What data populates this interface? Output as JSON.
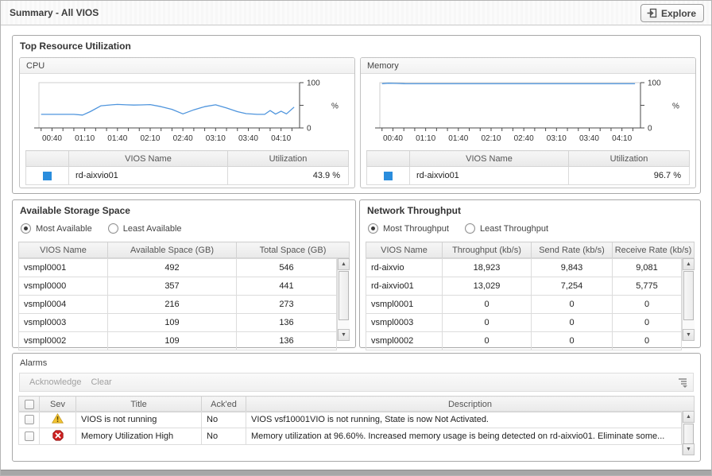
{
  "window": {
    "title": "Summary - All VIOS",
    "explore_label": "Explore"
  },
  "colors": {
    "accent_blue": "#2a8ddd",
    "chart_line": "#4f95dd",
    "warning_yellow": "#f3c431",
    "error_red": "#cc2020"
  },
  "icons": {
    "explore": "explore-arrow-into-screen-icon",
    "alarm_warning": "warning-triangle-icon",
    "alarm_error": "error-cross-icon",
    "column_config": "column-settings-icon",
    "scroll_up": "▲",
    "scroll_down": "▼"
  },
  "top_resource": {
    "title": "Top Resource Utilization",
    "cpu": {
      "title": "CPU",
      "legend_headers": [
        "VIOS Name",
        "Utilization"
      ],
      "rows": [
        {
          "name": "rd-aixvio01",
          "value": "43.9 %"
        }
      ]
    },
    "memory": {
      "title": "Memory",
      "legend_headers": [
        "VIOS Name",
        "Utilization"
      ],
      "rows": [
        {
          "name": "rd-aixvio01",
          "value": "96.7 %"
        }
      ]
    }
  },
  "storage": {
    "title": "Available Storage Space",
    "radio_options": [
      "Most Available",
      "Least Available"
    ],
    "selected_radio": "Most Available",
    "columns": [
      "VIOS Name",
      "Available Space (GB)",
      "Total Space (GB)"
    ],
    "rows": [
      [
        "vsmpl0001",
        "492",
        "546"
      ],
      [
        "vsmpl0000",
        "357",
        "441"
      ],
      [
        "vsmpl0004",
        "216",
        "273"
      ],
      [
        "vsmpl0003",
        "109",
        "136"
      ],
      [
        "vsmpl0002",
        "109",
        "136"
      ]
    ]
  },
  "network": {
    "title": "Network Throughput",
    "radio_options": [
      "Most Throughput",
      "Least Throughput"
    ],
    "selected_radio": "Most Throughput",
    "columns": [
      "VIOS Name",
      "Throughput (kb/s)",
      "Send Rate (kb/s)",
      "Receive Rate (kb/s)"
    ],
    "rows": [
      [
        "rd-aixvio",
        "18,923",
        "9,843",
        "9,081"
      ],
      [
        "rd-aixvio01",
        "13,029",
        "7,254",
        "5,775"
      ],
      [
        "vsmpl0001",
        "0",
        "0",
        "0"
      ],
      [
        "vsmpl0003",
        "0",
        "0",
        "0"
      ],
      [
        "vsmpl0002",
        "0",
        "0",
        "0"
      ]
    ]
  },
  "alarms": {
    "title": "Alarms",
    "toolbar": [
      "Acknowledge",
      "Clear"
    ],
    "columns": [
      "",
      "Sev",
      "Title",
      "Ack'ed",
      "Description"
    ],
    "rows": [
      {
        "severity": "warning",
        "title": "VIOS is not running",
        "acked": "No",
        "description": "VIOS vsf10001VIO is not running, State is now Not Activated."
      },
      {
        "severity": "error",
        "title": "Memory Utilization High",
        "acked": "No",
        "description": "Memory utilization at 96.60%. Increased memory usage is being detected on rd-aixvio01. Eliminate some..."
      }
    ]
  },
  "chart_data": [
    {
      "type": "line",
      "title": "CPU",
      "ylabel": "%",
      "ylim": [
        0,
        100
      ],
      "yticks": [
        0,
        50,
        100
      ],
      "ytick_labels": [
        "0",
        "",
        "100"
      ],
      "x_minutes_range": [
        28,
        267
      ],
      "xtick_minor_minutes": [
        30,
        40,
        50,
        60,
        70,
        80,
        90,
        100,
        110,
        120,
        130,
        140,
        150,
        160,
        170,
        180,
        190,
        200,
        210,
        220,
        230,
        240,
        250,
        260
      ],
      "xtick_labeled_minutes": [
        40,
        70,
        100,
        130,
        160,
        190,
        220,
        250
      ],
      "x_tick_labels": [
        "00:40",
        "01:10",
        "01:40",
        "02:10",
        "02:40",
        "03:10",
        "03:40",
        "04:10"
      ],
      "grid": false,
      "legend_position": "bottom-table",
      "series": [
        {
          "name": "rd-aixvio01",
          "points": [
            [
              30,
              30
            ],
            [
              45,
              30
            ],
            [
              60,
              30
            ],
            [
              68,
              28.5
            ],
            [
              75,
              36
            ],
            [
              85,
              49
            ],
            [
              95,
              51
            ],
            [
              100,
              52
            ],
            [
              108,
              51
            ],
            [
              115,
              50.5
            ],
            [
              122,
              50.8
            ],
            [
              130,
              51.5
            ],
            [
              140,
              47
            ],
            [
              150,
              41
            ],
            [
              160,
              31
            ],
            [
              170,
              40
            ],
            [
              180,
              47
            ],
            [
              190,
              51
            ],
            [
              200,
              44
            ],
            [
              210,
              36
            ],
            [
              218,
              31.5
            ],
            [
              228,
              30
            ],
            [
              235,
              30
            ],
            [
              240,
              38.5
            ],
            [
              245,
              30.5
            ],
            [
              250,
              37
            ],
            [
              255,
              31
            ],
            [
              262,
              46
            ]
          ]
        }
      ]
    },
    {
      "type": "line",
      "title": "Memory",
      "ylabel": "%",
      "ylim": [
        0,
        100
      ],
      "yticks": [
        0,
        50,
        100
      ],
      "ytick_labels": [
        "0",
        "",
        "100"
      ],
      "x_minutes_range": [
        28,
        267
      ],
      "xtick_minor_minutes": [
        30,
        40,
        50,
        60,
        70,
        80,
        90,
        100,
        110,
        120,
        130,
        140,
        150,
        160,
        170,
        180,
        190,
        200,
        210,
        220,
        230,
        240,
        250,
        260
      ],
      "xtick_labeled_minutes": [
        40,
        70,
        100,
        130,
        160,
        190,
        220,
        250
      ],
      "x_tick_labels": [
        "00:40",
        "01:10",
        "01:40",
        "02:10",
        "02:40",
        "03:10",
        "03:40",
        "04:10"
      ],
      "grid": false,
      "legend_position": "bottom-table",
      "series": [
        {
          "name": "rd-aixvio01",
          "points": [
            [
              30,
              97.8
            ],
            [
              36,
              98.8
            ],
            [
              44,
              98.2
            ],
            [
              52,
              97.5
            ],
            [
              80,
              97.5
            ],
            [
              120,
              97.5
            ],
            [
              160,
              97.5
            ],
            [
              200,
              97.5
            ],
            [
              240,
              97.5
            ],
            [
              262,
              97.6
            ]
          ]
        }
      ]
    }
  ]
}
